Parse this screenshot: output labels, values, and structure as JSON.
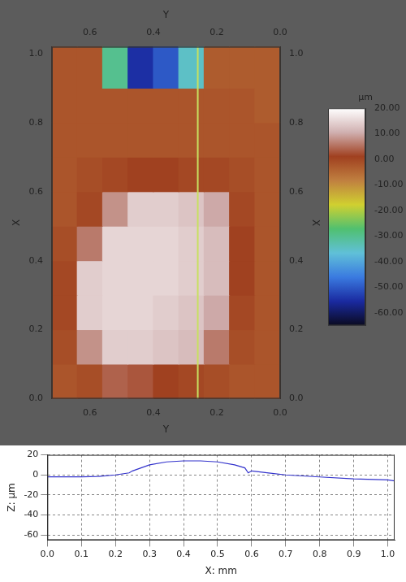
{
  "chart_data": [
    {
      "type": "heatmap",
      "x_label": "Y",
      "y_label": "X",
      "xlim": [
        0.72,
        0
      ],
      "xticks": [
        0.6,
        0.4,
        0.2,
        {
          "value": 0,
          "label": "0.0"
        }
      ],
      "ylim": [
        0,
        1.02
      ],
      "yticks": [
        {
          "value": 0,
          "label": "0.0"
        },
        0.2,
        0.4,
        0.6,
        0.8,
        {
          "value": 1,
          "label": "1.0"
        }
      ],
      "grid": false,
      "cells": {
        "col_edges": [
          0.72,
          0.64,
          0.56,
          0.48,
          0.4,
          0.32,
          0.24,
          0.16,
          0.08,
          0
        ],
        "row_edges": [
          0,
          0.1,
          0.2,
          0.3,
          0.4,
          0.5,
          0.6,
          0.7,
          0.8,
          0.9,
          1.02
        ],
        "z": [
          [
            -2,
            -1,
            4,
            3,
            1,
            0,
            -1,
            -2,
            -2
          ],
          [
            -1,
            8,
            14,
            14,
            13,
            12,
            6,
            -1,
            -2
          ],
          [
            0,
            14,
            15,
            15,
            14,
            13,
            10,
            0,
            -2
          ],
          [
            0,
            14,
            15,
            15,
            15,
            14,
            12,
            1,
            -2
          ],
          [
            -1,
            6,
            15,
            15,
            15,
            14,
            12,
            1,
            -2
          ],
          [
            -2,
            0,
            8,
            14,
            14,
            13,
            10,
            0,
            -2
          ],
          [
            -2,
            -1,
            0,
            1,
            1,
            0,
            0,
            -1,
            -2
          ],
          [
            -2,
            -2,
            -2,
            -2,
            -2,
            -2,
            -2,
            -2,
            -2
          ],
          [
            -2,
            -2,
            -2,
            -2,
            -2,
            -2,
            -2,
            -2,
            -3
          ],
          [
            -2,
            -2,
            -30,
            -55,
            -50,
            -35,
            -3,
            -3,
            -3
          ]
        ]
      },
      "profile_line": {
        "x": 0.26,
        "color": "#c8e060"
      },
      "colorbar": {
        "label": "µm",
        "range": [
          -65,
          20
        ],
        "ticks": [
          {
            "value": 20,
            "label": "20.00"
          },
          {
            "value": 10,
            "label": "10.00"
          },
          {
            "value": 0,
            "label": "0.00"
          },
          {
            "value": -10,
            "label": "-10.00"
          },
          {
            "value": -20,
            "label": "-20.00"
          },
          {
            "value": -30,
            "label": "-30.00"
          },
          {
            "value": -40,
            "label": "-40.00"
          },
          {
            "value": -50,
            "label": "-50.00"
          },
          {
            "value": -60,
            "label": "-60.00"
          }
        ],
        "colors": [
          "#0a0a20",
          "#1a2aa0",
          "#3a7ae0",
          "#60c0d8",
          "#50c070",
          "#d0d030",
          "#c08040",
          "#a04020",
          "#d0b0b0",
          "#ffffff"
        ]
      }
    },
    {
      "type": "line",
      "x_label": "X: mm",
      "y_label": "Z: µm",
      "x": [
        0,
        0.05,
        0.1,
        0.15,
        0.2,
        0.24,
        0.25,
        0.3,
        0.35,
        0.4,
        0.45,
        0.5,
        0.55,
        0.58,
        0.59,
        0.6,
        0.65,
        0.7,
        0.8,
        0.9,
        1.0,
        1.02
      ],
      "values": [
        -2,
        -2,
        -2,
        -1.5,
        0,
        2,
        4,
        10,
        13,
        14,
        14,
        13,
        10,
        7,
        2,
        4,
        2,
        0,
        -2,
        -4,
        -5,
        -6
      ],
      "color": "#3333cc",
      "xlim": [
        0,
        1.02
      ],
      "xticks": [
        {
          "value": 0,
          "label": "0.0"
        },
        0.1,
        0.2,
        0.3,
        0.4,
        0.5,
        0.6,
        0.7,
        0.8,
        0.9,
        {
          "value": 1,
          "label": "1.0"
        }
      ],
      "ylim": [
        -65,
        20
      ],
      "yticks": [
        20,
        0,
        -20,
        -40,
        -60
      ],
      "grid": true
    }
  ]
}
